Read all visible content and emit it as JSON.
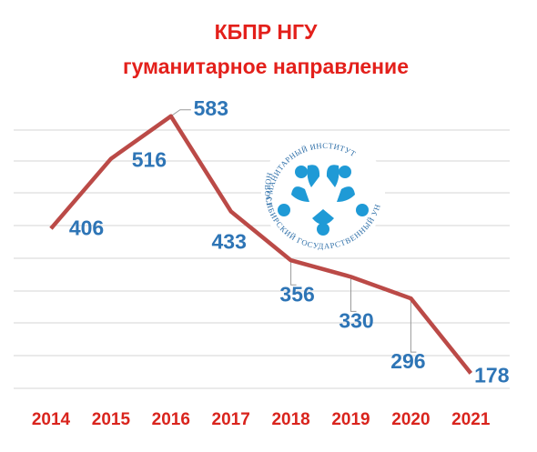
{
  "chart_data": {
    "type": "line",
    "title": "КБПР НГУ",
    "subtitle": "гуманитарное направление",
    "categories": [
      "2014",
      "2015",
      "2016",
      "2017",
      "2018",
      "2019",
      "2020",
      "2021"
    ],
    "values": [
      406,
      516,
      583,
      433,
      356,
      330,
      296,
      178
    ],
    "color": "#bb4a47",
    "label_color": "#2e75b6",
    "ylim": [
      150,
      650
    ],
    "grid": true
  },
  "logo": {
    "top_text": "ГУМАНИТАРНЫЙ ИНСТИТУТ",
    "bottom_text": "НОВОСИБИРСКИЙ ГОСУДАРСТВЕННЫЙ УНИВЕРСИТЕТ"
  }
}
